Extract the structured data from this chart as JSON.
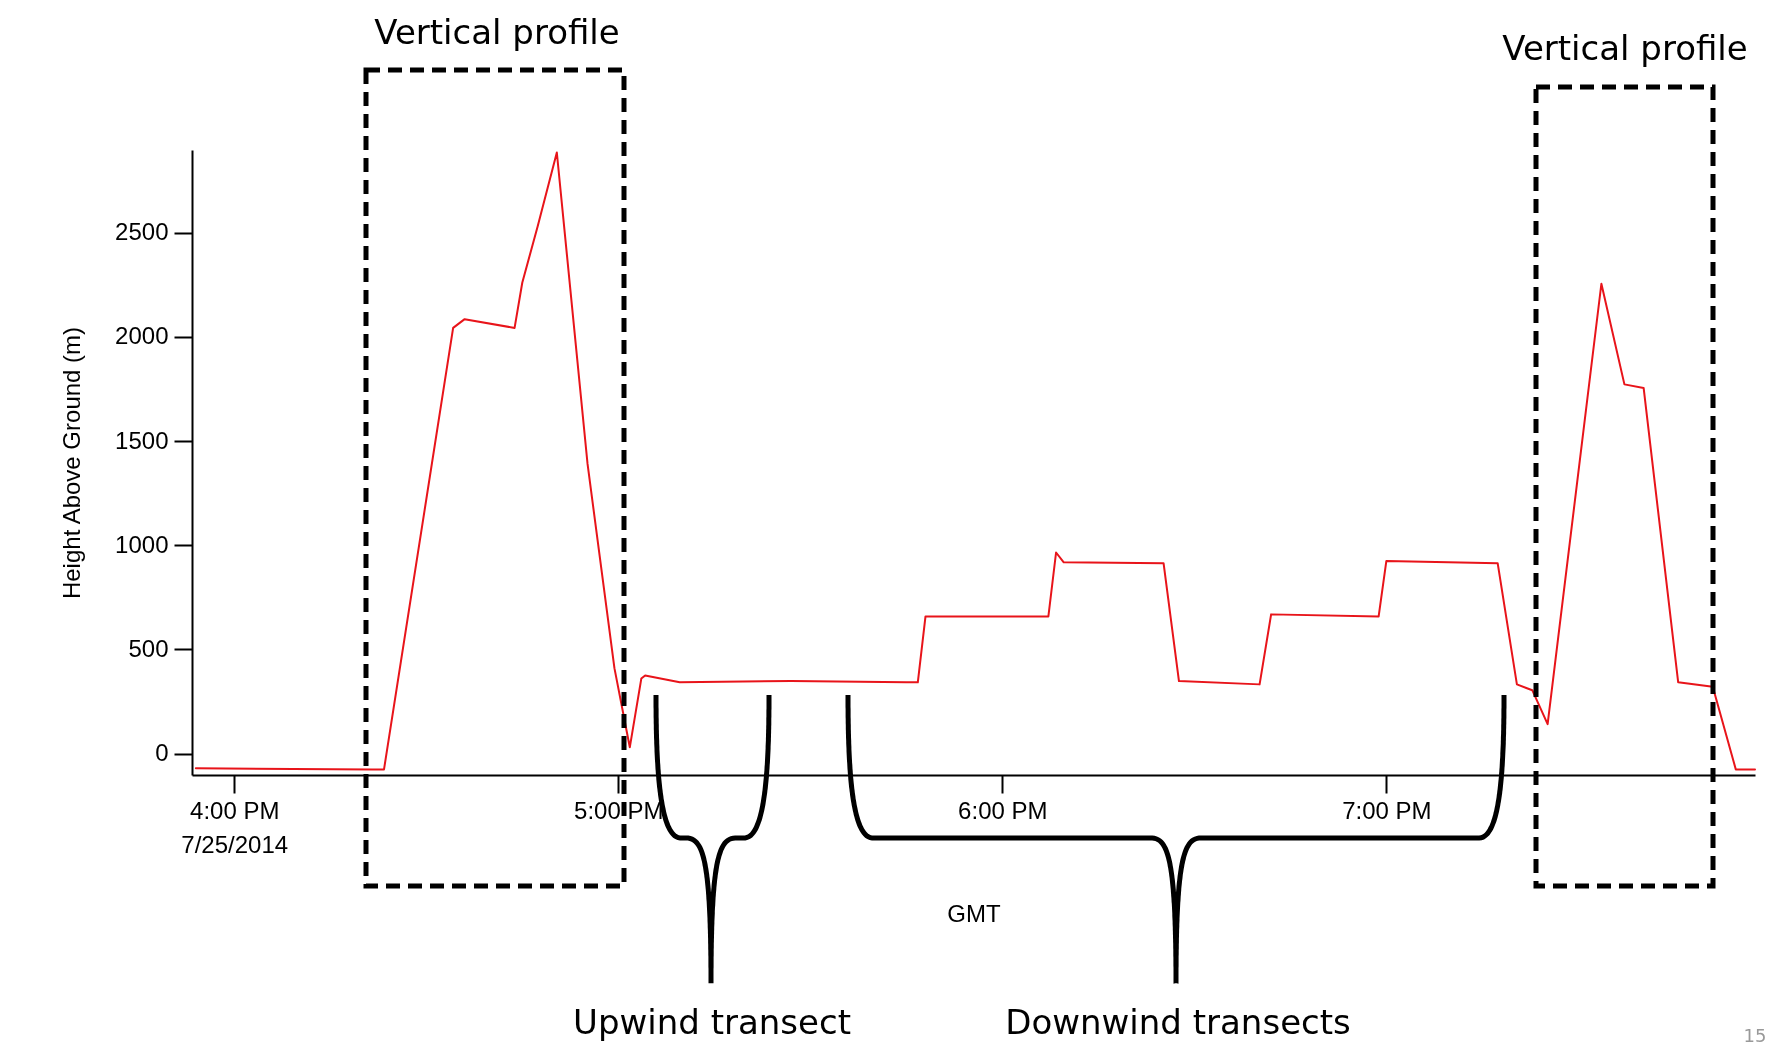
{
  "chart_data": {
    "type": "line",
    "xlabel": "GMT",
    "ylabel": "Height Above Ground (m)",
    "xlim": [
      15.89,
      19.96
    ],
    "ylim": [
      -103,
      2897
    ],
    "xticks": [
      {
        "value": 16,
        "label": "4:00 PM\n7/25/2014"
      },
      {
        "value": 17,
        "label": "5:00 PM"
      },
      {
        "value": 18,
        "label": "6:00 PM"
      },
      {
        "value": 19,
        "label": "7:00 PM"
      }
    ],
    "yticks": [
      0,
      500,
      1000,
      1500,
      2000,
      2500
    ],
    "grid": false,
    "legend": false,
    "marker": "none",
    "line_style": "solid",
    "series": [
      {
        "color": "#e8141a",
        "x": [
          15.9,
          16.36,
          16.39,
          16.57,
          16.6,
          16.73,
          16.75,
          16.79,
          16.84,
          16.92,
          16.99,
          17.03,
          17.06,
          17.07,
          17.16,
          17.45,
          17.75,
          17.78,
          17.8,
          18.04,
          18.12,
          18.14,
          18.16,
          18.42,
          18.46,
          18.67,
          18.7,
          18.98,
          19.0,
          19.29,
          19.34,
          19.38,
          19.42,
          19.56,
          19.62,
          19.67,
          19.76,
          19.85,
          19.91,
          19.96
        ],
        "values": [
          -71,
          -76,
          -76,
          2043,
          2085,
          2043,
          2260,
          2530,
          2885,
          1390,
          410,
          30,
          360,
          375,
          342,
          348,
          342,
          342,
          658,
          658,
          658,
          965,
          918,
          913,
          348,
          332,
          668,
          658,
          924,
          913,
          332,
          304,
          141,
          2255,
          1772,
          1755,
          342,
          321,
          -76,
          -76
        ]
      }
    ],
    "annotations": [
      "Vertical profile",
      "Vertical profile",
      "Upwind transect",
      "Downwind transects",
      "15"
    ]
  }
}
